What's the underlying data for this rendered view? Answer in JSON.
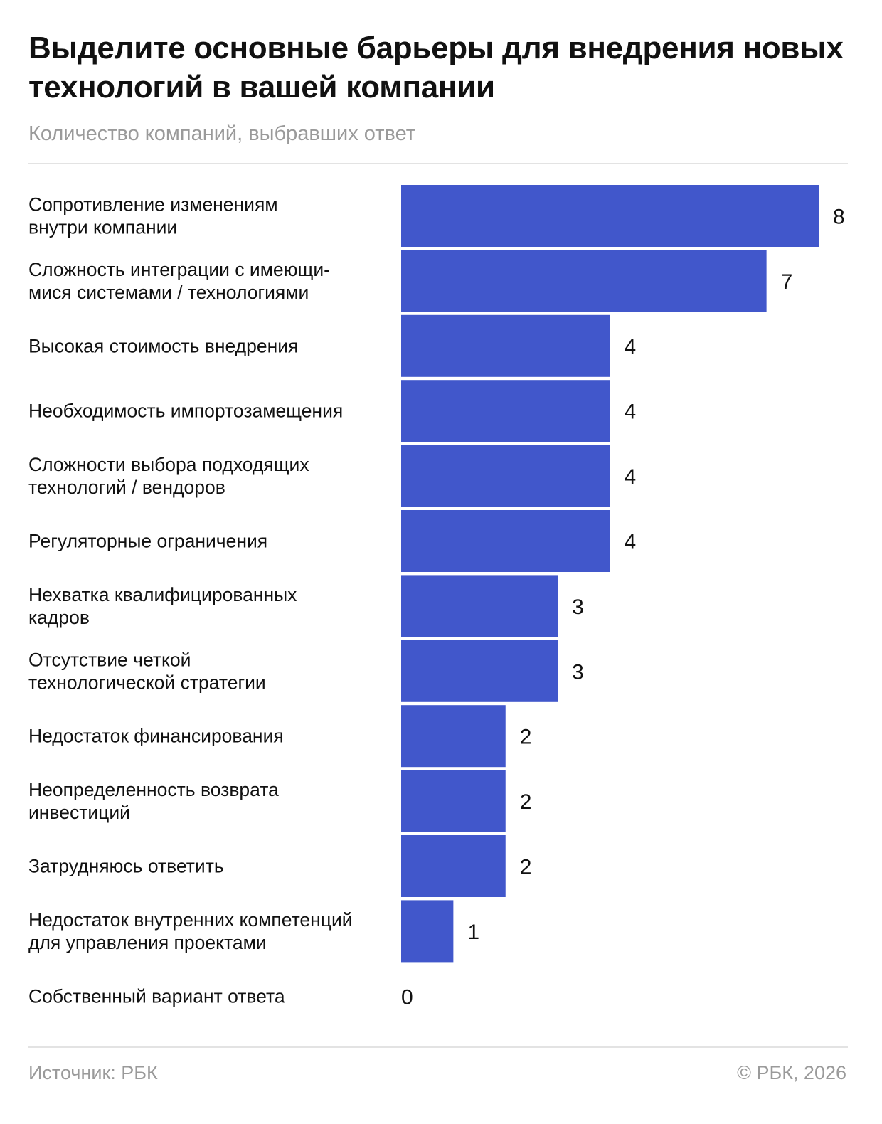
{
  "header": {
    "title": "Выделите основные барьеры для внедрения новых технологий в вашей компании",
    "subtitle": "Количество компаний, выбравших ответ"
  },
  "footer": {
    "source": "Источник: РБК",
    "copyright": "© РБК, 2026"
  },
  "chart_data": {
    "type": "bar",
    "orientation": "horizontal",
    "title": "Выделите основные барьеры для внедрения новых технологий в вашей компании",
    "subtitle": "Количество компаний, выбравших ответ",
    "categories": [
      [
        "Сопротивление изменениям",
        "внутри компании"
      ],
      [
        "Сложность интеграции с имеющи-",
        "мися системами / технологиями"
      ],
      [
        "Высокая стоимость внедрения"
      ],
      [
        "Необходимость импортозамещения"
      ],
      [
        "Сложности выбора подходящих",
        "технологий / вендоров"
      ],
      [
        "Регуляторные ограничения"
      ],
      [
        "Нехватка квалифицированных",
        "кадров"
      ],
      [
        "Отсутствие четкой",
        "технологической стратегии"
      ],
      [
        "Недостаток финансирования"
      ],
      [
        "Неопределенность возврата",
        "инвестиций"
      ],
      [
        "Затрудняюсь ответить"
      ],
      [
        "Недостаток внутренних компетенций",
        "для управления проектами"
      ],
      [
        "Собственный вариант ответа"
      ]
    ],
    "values": [
      8,
      7,
      4,
      4,
      4,
      4,
      3,
      3,
      2,
      2,
      2,
      1,
      0
    ],
    "value_labels": [
      "8",
      "7",
      "4",
      "4",
      "4",
      "4",
      "3",
      "3",
      "2",
      "2",
      "2",
      "1",
      "0"
    ],
    "xlim": [
      0,
      8
    ],
    "grid": false,
    "legend": "none",
    "bar_color": "#4157cb"
  }
}
